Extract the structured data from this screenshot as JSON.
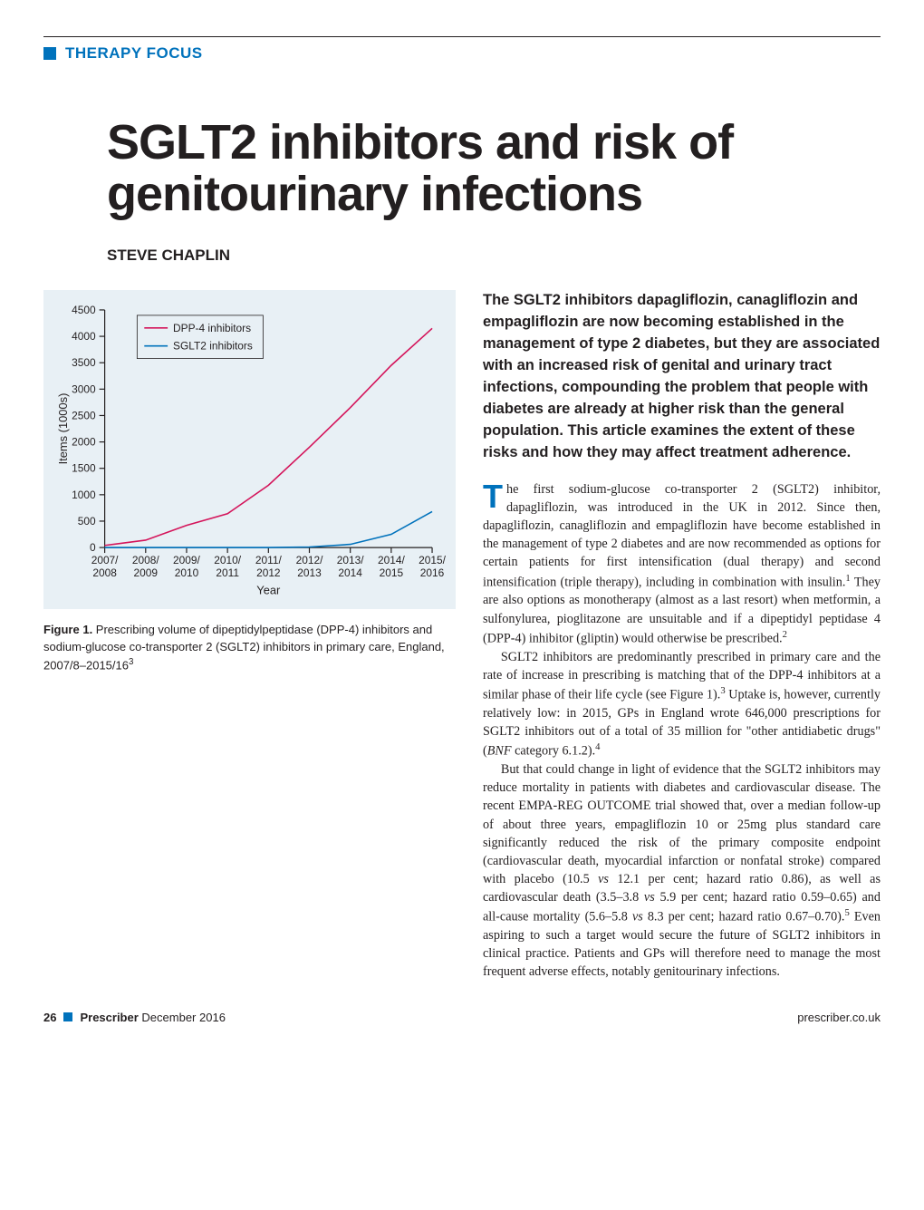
{
  "section_label": "THERAPY FOCUS",
  "title": "SGLT2 inhibitors and risk of genitourinary infections",
  "author": "STEVE CHAPLIN",
  "chart": {
    "type": "line",
    "background_color": "#e8f0f5",
    "plot_bg": "#e8f0f5",
    "axis_color": "#231f20",
    "tick_font_size": 12,
    "ylabel": "Items (1000s)",
    "xlabel": "Year",
    "ylim": [
      0,
      4500
    ],
    "ytick_step": 500,
    "yticks": [
      0,
      500,
      1000,
      1500,
      2000,
      2500,
      3000,
      3500,
      4000,
      4500
    ],
    "xcategories": [
      "2007/\n2008",
      "2008/\n2009",
      "2009/\n2010",
      "2010/\n2011",
      "2011/\n2012",
      "2012/\n2013",
      "2013/\n2014",
      "2014/\n2015",
      "2015/\n2016"
    ],
    "series": [
      {
        "name": "DPP-4 inhibitors",
        "color": "#d4145a",
        "line_width": 1.6,
        "values": [
          40,
          140,
          420,
          640,
          1180,
          1900,
          2650,
          3450,
          4150
        ]
      },
      {
        "name": "SGLT2 inhibitors",
        "color": "#0072bc",
        "line_width": 1.6,
        "values": [
          0,
          0,
          0,
          0,
          0,
          10,
          60,
          250,
          680
        ]
      }
    ],
    "legend": {
      "position": "top-left-inside",
      "border_color": "#231f20",
      "bg": "#e8f0f5",
      "font_size": 12
    }
  },
  "figure_caption_label": "Figure 1.",
  "figure_caption_text": " Prescribing volume of dipeptidylpeptidase (DPP-4) inhibitors and sodium-glucose co-transporter 2 (SGLT2) inhibitors in primary care, England, 2007/8–2015/16",
  "figure_caption_ref": "3",
  "lead": "The SGLT2 inhibitors dapagliflozin, canagliflozin and empagliflozin are now becoming established in the management of type 2 diabetes, but they are associated with an increased risk of genital and urinary tract infections, compounding the problem that people with diabetes are already at higher risk than the general population. This article examines the extent of these risks and how they may affect treatment adherence.",
  "paragraphs": [
    "The first sodium-glucose co-transporter 2 (SGLT2) inhibitor, dapagliflozin, was introduced in the UK in 2012. Since then, dapagliflozin, canagliflozin and empagliflozin have become established in the management of type 2 diabetes and are now recommended as options for certain patients for first intensification (dual therapy) and second intensification (triple therapy), including in combination with insulin.<sup>1</sup> They are also options as monotherapy (almost as a last resort) when metformin, a sulfonylurea, pioglitazone are unsuitable and if a dipeptidyl peptidase 4 (DPP-4) inhibitor (gliptin) would otherwise be prescribed.<sup>2</sup>",
    "SGLT2 inhibitors are predominantly prescribed in primary care and the rate of increase in prescribing is matching that of the DPP-4 inhibitors at a similar phase of their life cycle (see Figure 1).<sup>3</sup> Uptake is, however, currently relatively low: in 2015, GPs in England wrote 646,000 prescriptions for SGLT2 inhibitors out of a total of 35 million for \"other antidiabetic drugs\" (<em>BNF</em> category 6.1.2).<sup>4</sup>",
    "But that could change in light of evidence that the SGLT2 inhibitors may reduce mortality in patients with diabetes and cardiovascular disease. The recent EMPA-REG OUTCOME trial showed that, over a median follow-up of about three years, empagliflozin 10 or 25mg plus standard care significantly reduced the risk of the primary composite endpoint (cardiovascular death, myocardial infarction or nonfatal stroke) compared with placebo (10.5 <em>vs</em> 12.1 per cent; hazard ratio 0.86), as well as cardiovascular death (3.5–3.8 <em>vs</em> 5.9 per cent; hazard ratio 0.59–0.65) and all-cause mortality (5.6–5.8 <em>vs</em> 8.3 per cent; hazard ratio 0.67–0.70).<sup>5</sup> Even aspiring to such a target would secure the future of SGLT2 inhibitors in clinical practice. Patients and GPs will therefore need to manage the most frequent adverse effects, notably genitourinary infections."
  ],
  "footer": {
    "page_number": "26",
    "publication": "Prescriber",
    "issue": "December 2016",
    "url": "prescriber.co.uk"
  }
}
